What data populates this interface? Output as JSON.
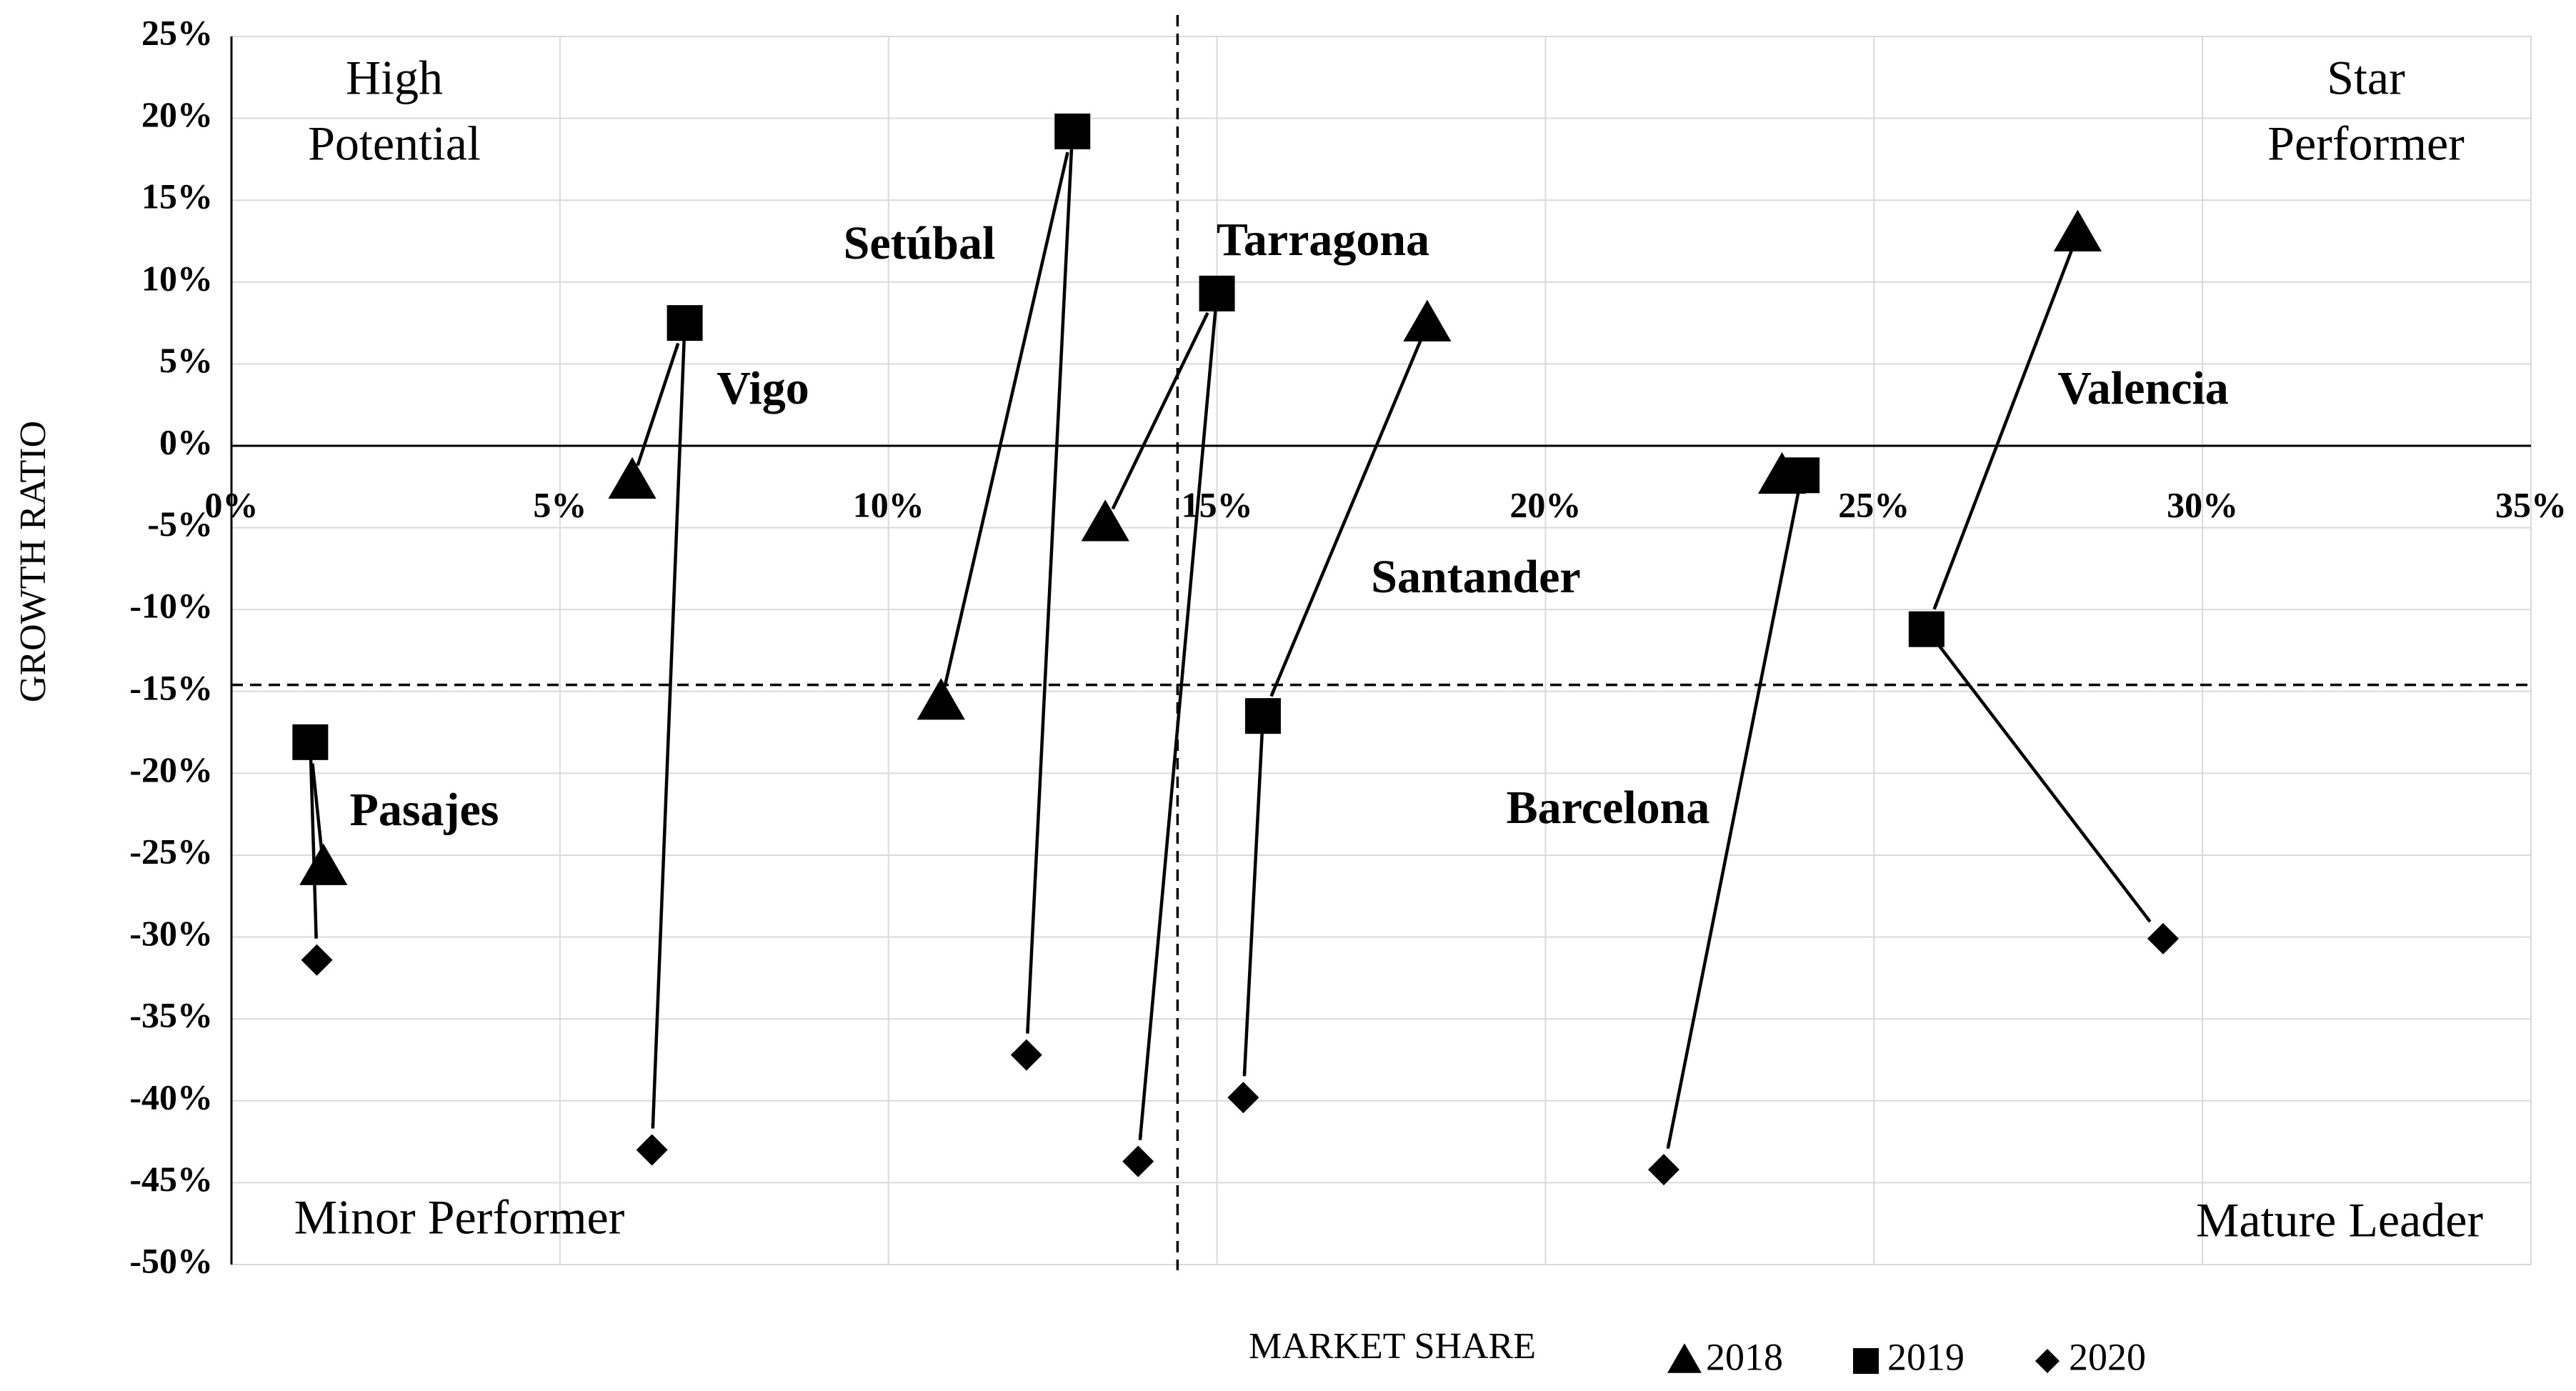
{
  "chart_data": {
    "type": "scatter",
    "xlabel": "MARKET SHARE",
    "ylabel": "GROWTH RATIO",
    "xlim": [
      0,
      35
    ],
    "ylim": [
      -50,
      25
    ],
    "xticks": [
      {
        "value": 0,
        "label": "0%"
      },
      {
        "value": 5,
        "label": "5%"
      },
      {
        "value": 10,
        "label": "10%"
      },
      {
        "value": 15,
        "label": "15%"
      },
      {
        "value": 20,
        "label": "20%"
      },
      {
        "value": 25,
        "label": "25%"
      },
      {
        "value": 30,
        "label": "30%"
      },
      {
        "value": 35,
        "label": "35%"
      }
    ],
    "yticks": [
      {
        "value": 25,
        "label": "25%"
      },
      {
        "value": 20,
        "label": "20%"
      },
      {
        "value": 15,
        "label": "15%"
      },
      {
        "value": 10,
        "label": "10%"
      },
      {
        "value": 5,
        "label": "5%"
      },
      {
        "value": 0,
        "label": "0%"
      },
      {
        "value": -5,
        "label": "-5%"
      },
      {
        "value": -10,
        "label": "-10%"
      },
      {
        "value": -15,
        "label": "-15%"
      },
      {
        "value": -20,
        "label": "-20%"
      },
      {
        "value": -25,
        "label": "-25%"
      },
      {
        "value": -30,
        "label": "-30%"
      },
      {
        "value": -35,
        "label": "-35%"
      },
      {
        "value": -40,
        "label": "-40%"
      },
      {
        "value": -45,
        "label": "-45%"
      },
      {
        "value": -50,
        "label": "-50%"
      }
    ],
    "grid": true,
    "reference_lines": {
      "x": 14.4,
      "y": -14.6
    },
    "quadrant_labels": {
      "top_left": [
        "High",
        "Potential"
      ],
      "top_right": [
        "Star",
        "Performer"
      ],
      "bottom_left": [
        "Minor Performer"
      ],
      "bottom_right": [
        "Mature Leader"
      ]
    },
    "years": [
      "2018",
      "2019",
      "2020"
    ],
    "markers": [
      "triangle",
      "square",
      "diamond"
    ],
    "color": "#000000",
    "series": [
      {
        "name": "Pasajes",
        "x": [
          1.4,
          1.2,
          1.3
        ],
        "y": [
          -25.8,
          -18.1,
          -31.4
        ]
      },
      {
        "name": "Vigo",
        "x": [
          6.1,
          6.9,
          6.4
        ],
        "y": [
          -2.2,
          7.5,
          -43.0
        ]
      },
      {
        "name": "Setúbal",
        "x": [
          10.8,
          12.8,
          12.1
        ],
        "y": [
          -15.7,
          19.2,
          -37.2
        ]
      },
      {
        "name": "Tarragona",
        "x": [
          13.3,
          15.0,
          13.8
        ],
        "y": [
          -4.8,
          9.3,
          -43.7
        ]
      },
      {
        "name": "Santander",
        "x": [
          18.2,
          15.7,
          15.4
        ],
        "y": [
          7.4,
          -16.5,
          -39.8
        ]
      },
      {
        "name": "Barcelona",
        "x": [
          23.6,
          23.9,
          21.8
        ],
        "y": [
          -1.9,
          -1.8,
          -44.2
        ]
      },
      {
        "name": "Valencia",
        "x": [
          28.1,
          25.8,
          29.4
        ],
        "y": [
          12.9,
          -11.2,
          -30.1
        ]
      }
    ]
  }
}
